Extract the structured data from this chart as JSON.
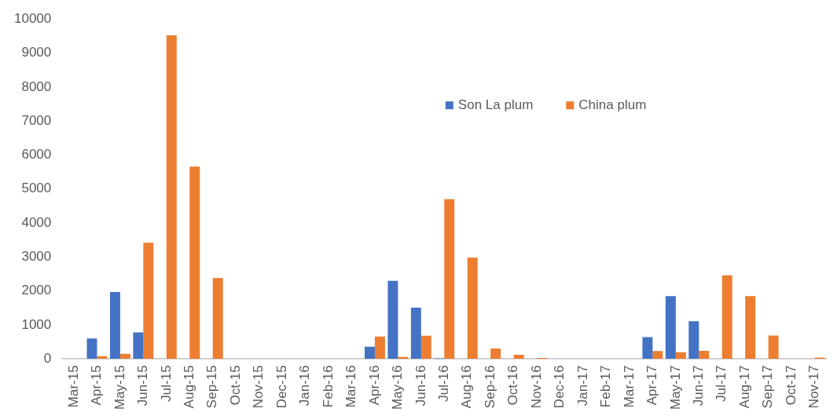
{
  "chart_data": {
    "type": "bar",
    "categories": [
      "Mar-15",
      "Apr-15",
      "May-15",
      "Jun-15",
      "Jul-15",
      "Aug-15",
      "Sep-15",
      "Oct-15",
      "Nov-15",
      "Dec-15",
      "Jan-16",
      "Feb-16",
      "Mar-16",
      "Apr-16",
      "May-16",
      "Jun-16",
      "Jul-16",
      "Aug-16",
      "Sep-16",
      "Oct-16",
      "Nov-16",
      "Dec-16",
      "Jan-17",
      "Feb-17",
      "Mar-17",
      "Apr-17",
      "May-17",
      "Jun-17",
      "Jul-17",
      "Aug-17",
      "Sep-17",
      "Oct-17",
      "Nov-17"
    ],
    "series": [
      {
        "name": "Son La plum",
        "color": "#4472c4",
        "values": [
          0,
          600,
          1970,
          780,
          0,
          0,
          0,
          0,
          0,
          0,
          0,
          0,
          0,
          360,
          2300,
          1510,
          20,
          0,
          0,
          0,
          0,
          0,
          0,
          0,
          0,
          640,
          1850,
          1110,
          0,
          0,
          0,
          0,
          0
        ]
      },
      {
        "name": "China plum",
        "color": "#ed7d31",
        "values": [
          0,
          80,
          150,
          3420,
          9520,
          5660,
          2380,
          0,
          0,
          0,
          0,
          0,
          0,
          660,
          60,
          680,
          4700,
          2980,
          310,
          120,
          30,
          0,
          0,
          0,
          0,
          230,
          200,
          240,
          2460,
          1850,
          690,
          0,
          40
        ]
      }
    ],
    "ylim": [
      0,
      10000
    ],
    "yticks": [
      0,
      1000,
      2000,
      3000,
      4000,
      5000,
      6000,
      7000,
      8000,
      9000,
      10000
    ],
    "grid": false,
    "legend": "top right"
  }
}
